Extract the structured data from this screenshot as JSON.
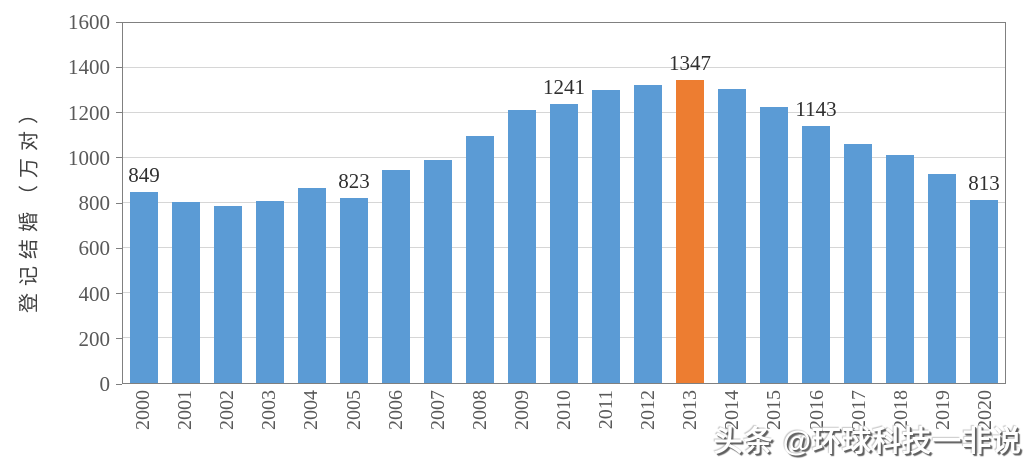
{
  "chart_data": {
    "type": "bar",
    "title": "",
    "xlabel": "",
    "ylabel": "登记结婚（万对）",
    "ylim": [
      0,
      1600
    ],
    "ytick_step": 200,
    "yticks": [
      0,
      200,
      400,
      600,
      800,
      1000,
      1200,
      1400,
      1600
    ],
    "grid": true,
    "legend": false,
    "categories": [
      "2000",
      "2001",
      "2002",
      "2003",
      "2004",
      "2005",
      "2006",
      "2007",
      "2008",
      "2009",
      "2010",
      "2011",
      "2012",
      "2013",
      "2014",
      "2015",
      "2016",
      "2017",
      "2018",
      "2019",
      "2020"
    ],
    "values": [
      849,
      805,
      786,
      811,
      867,
      823,
      945,
      991,
      1099,
      1212,
      1241,
      1302,
      1324,
      1347,
      1307,
      1225,
      1143,
      1063,
      1014,
      927,
      813
    ],
    "data_labels_visible_for": [
      "2000",
      "2005",
      "2010",
      "2013",
      "2016",
      "2020"
    ],
    "data_labels": {
      "2000": "849",
      "2005": "823",
      "2010": "1241",
      "2013": "1347",
      "2016": "1143",
      "2020": "813"
    },
    "highlight_category": "2013",
    "colors": {
      "bar": "#5B9BD5",
      "highlight_bar": "#ED7D31",
      "gridline": "#D6D6D6",
      "axis_border": "#808080",
      "tick_text": "#595959",
      "data_label_text": "#303030"
    }
  },
  "watermark": {
    "text": "头条 @环球科技一非说"
  }
}
